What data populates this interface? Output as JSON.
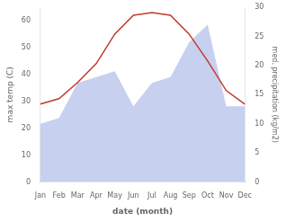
{
  "chart_data": {
    "type": "line",
    "xlabel": "date (month)",
    "ylabel": "max temp (C)",
    "y2label": "med. precipitation (kg/m2)",
    "categories": [
      "Jan",
      "Feb",
      "Mar",
      "Apr",
      "May",
      "Jun",
      "Jul",
      "Aug",
      "Sep",
      "Oct",
      "Nov",
      "Dec"
    ],
    "series": [
      {
        "type": "area",
        "axis": "y2",
        "color": "#c8d0f0",
        "values": [
          10,
          11,
          17,
          18,
          19,
          13,
          17,
          18,
          24,
          27,
          13,
          13
        ]
      },
      {
        "type": "line",
        "color": "#c0392b",
        "values": [
          29,
          31,
          37,
          44,
          55,
          62,
          63,
          62,
          55,
          45,
          34,
          29
        ]
      }
    ],
    "ylim": [
      0,
      65
    ],
    "yticks": [
      0,
      10,
      20,
      30,
      40,
      50,
      60
    ],
    "y2lim": [
      0,
      30
    ],
    "y2ticks": [
      0,
      5,
      10,
      15,
      20,
      25,
      30
    ],
    "grid": false
  }
}
